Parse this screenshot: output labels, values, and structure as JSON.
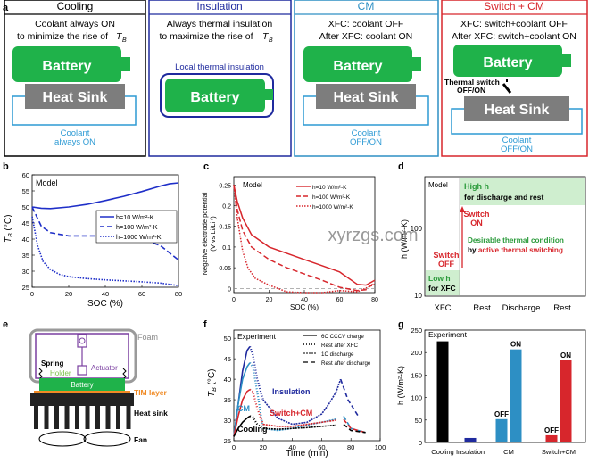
{
  "panel_a": {
    "label": "a",
    "cooling": {
      "title": "Cooling",
      "line1": "Coolant always ON",
      "line2": "to minimize the rise of ",
      "tb": "T",
      "tb_sub": "B",
      "battery": "Battery",
      "heatsink": "Heat Sink",
      "coolant1": "Coolant",
      "coolant2": "always ON"
    },
    "insulation": {
      "title": "Insulation",
      "line1": "Always thermal insulation",
      "line2": "to maximize the rise of ",
      "tb": "T",
      "tb_sub": "B",
      "local": "Local thermal insulation",
      "battery": "Battery"
    },
    "cm": {
      "title": "CM",
      "line1": "XFC: coolant OFF",
      "line2": "After XFC: coolant ON",
      "battery": "Battery",
      "heatsink": "Heat Sink",
      "coolant1": "Coolant",
      "coolant2": "OFF/ON"
    },
    "switch": {
      "title": "Switch + CM",
      "line1": "XFC: switch+coolant OFF",
      "line2": "After XFC: switch+coolant ON",
      "battery": "Battery",
      "ts1": "Thermal switch",
      "ts2": "OFF/ON",
      "heatsink": "Heat Sink",
      "coolant1": "Coolant",
      "coolant2": "OFF/ON"
    }
  },
  "panel_b": {
    "label": "b",
    "model": "Model",
    "ylabel_t": "T",
    "ylabel_sub": "B",
    "ylabel_unit": " (°C)",
    "xlabel": "SOC (%)",
    "legend": [
      "h=10 W/m²-K",
      "h=100 W/m²-K",
      "h=1000 W/m²-K"
    ],
    "xticks": [
      "0",
      "20",
      "40",
      "60",
      "80"
    ],
    "yticks": [
      "25",
      "30",
      "35",
      "40",
      "45",
      "50",
      "55",
      "60"
    ]
  },
  "panel_c": {
    "label": "c",
    "model": "Model",
    "ylabel1": "Negative electrode potential",
    "ylabel2": "(V vs Li/Li⁺)",
    "xlabel": "SOC (%)",
    "legend": [
      "h=10 W/m²-K",
      "h=100 W/m²-K",
      "h=1000 W/m²-K"
    ],
    "xticks": [
      "0",
      "20",
      "40",
      "60",
      "80"
    ],
    "yticks": [
      "0",
      "0.05",
      "0.1",
      "0.15",
      "0.2",
      "0.25"
    ]
  },
  "panel_d": {
    "label": "d",
    "model": "Model",
    "ylabel": "h (W/m²-K)",
    "yticks": [
      "10",
      "100"
    ],
    "xcats": [
      "XFC",
      "Rest",
      "Discharge",
      "Rest"
    ],
    "high_h": "High h",
    "high_desc": "for discharge and rest",
    "switch_on1": "Switch",
    "switch_on2": "ON",
    "switch_off1": "Switch",
    "switch_off2": "OFF",
    "desirable1": "Desirable thermal condition",
    "desirable2a": "by ",
    "desirable2b": "active thermal switching",
    "low_h": "Low h",
    "low_desc": "for XFC"
  },
  "panel_e": {
    "label": "e",
    "foam": "Foam",
    "spring": "Spring",
    "holder": "Holder",
    "actuator": "Actuator",
    "battery": "Battery",
    "tim": "TIM layer",
    "heatsink": "Heat sink",
    "fan": "Fan"
  },
  "panel_f": {
    "label": "f",
    "experiment": "Experiment",
    "ylabel_t": "T",
    "ylabel_sub": "B",
    "ylabel_unit": " (°C)",
    "xlabel": "Time (min)",
    "legend": [
      "6C CCCV charge",
      "Rest after XFC",
      "1C discharge",
      "Rest after discharge"
    ],
    "series_labels": [
      "Insulation",
      "CM",
      "Switch+CM",
      "Cooling"
    ],
    "xticks": [
      "0",
      "20",
      "40",
      "60",
      "80",
      "100"
    ],
    "yticks": [
      "25",
      "30",
      "35",
      "40",
      "45",
      "50"
    ]
  },
  "panel_g": {
    "label": "g",
    "experiment": "Experiment",
    "ylabel": "h (W/m²-K)",
    "yticks": [
      "0",
      "50",
      "100",
      "150",
      "200",
      "250"
    ],
    "categories": [
      "Cooling",
      "Insulation",
      "CM",
      "Switch+CM"
    ],
    "bar_labels": [
      "OFF",
      "ON",
      "OFF",
      "ON"
    ]
  },
  "watermark": "xyrzgs.com",
  "colors": {
    "cooling": "#000000",
    "insulation": "#1f2a9e",
    "cm": "#2d8fc4",
    "switch": "#d7262c",
    "battery": "#1fb24a",
    "heatsink": "#7d7d7d",
    "coolant": "#2d9ad4"
  },
  "chart_data": [
    {
      "panel": "b",
      "type": "line",
      "xlim": [
        0,
        80
      ],
      "ylim": [
        25,
        60
      ],
      "series": [
        {
          "name": "h=10 W/m²-K",
          "x": [
            0,
            5,
            10,
            20,
            30,
            40,
            50,
            60,
            70,
            75,
            80
          ],
          "y": [
            50,
            49.6,
            49.5,
            50,
            50.8,
            52,
            53.3,
            54.8,
            56.5,
            57.2,
            57.5
          ]
        },
        {
          "name": "h=100 W/m²-K",
          "x": [
            0,
            5,
            10,
            20,
            30,
            40,
            50,
            60,
            70,
            80
          ],
          "y": [
            50,
            44,
            42,
            41,
            41,
            41,
            40.8,
            40,
            38,
            33.5
          ]
        },
        {
          "name": "h=1000 W/m²-K",
          "x": [
            0,
            3,
            6,
            10,
            15,
            20,
            30,
            40,
            50,
            60,
            70,
            80
          ],
          "y": [
            47,
            38,
            33,
            30.5,
            29,
            28.3,
            27.7,
            27.3,
            27,
            26.7,
            26.3,
            25.5
          ]
        }
      ]
    },
    {
      "panel": "c",
      "type": "line",
      "xlim": [
        0,
        80
      ],
      "ylim": [
        -0.01,
        0.27
      ],
      "series": [
        {
          "name": "h=10 W/m²-K",
          "x": [
            0,
            2,
            5,
            10,
            20,
            30,
            40,
            50,
            60,
            70,
            75,
            80
          ],
          "y": [
            0.25,
            0.21,
            0.17,
            0.13,
            0.1,
            0.085,
            0.07,
            0.055,
            0.04,
            0.01,
            0.008,
            0.02
          ]
        },
        {
          "name": "h=100 W/m²-K",
          "x": [
            0,
            2,
            5,
            10,
            20,
            30,
            40,
            50,
            60,
            70,
            75,
            80
          ],
          "y": [
            0.25,
            0.19,
            0.14,
            0.1,
            0.07,
            0.05,
            0.035,
            0.02,
            0.003,
            -0.005,
            -0.003,
            0.015
          ]
        },
        {
          "name": "h=1000 W/m²-K",
          "x": [
            0,
            2,
            5,
            8,
            12,
            20,
            30,
            40,
            50,
            60,
            70,
            80
          ],
          "y": [
            0.25,
            0.17,
            0.09,
            0.05,
            0.025,
            0.008,
            -0.008,
            -0.01,
            -0.01,
            -0.005,
            -0.008,
            0.01
          ]
        }
      ]
    },
    {
      "panel": "f",
      "type": "line",
      "xlim": [
        0,
        100
      ],
      "ylim": [
        25,
        52
      ],
      "series": [
        {
          "name": "Insulation",
          "x": [
            0,
            3,
            6,
            9,
            11,
            13,
            16,
            20,
            30,
            40,
            50,
            60,
            65,
            70,
            73,
            78,
            85
          ],
          "y": [
            26,
            34,
            42,
            47,
            48,
            46,
            40,
            35,
            30.5,
            29,
            29.5,
            31.5,
            34,
            37,
            40,
            35,
            31
          ]
        },
        {
          "name": "CM",
          "x": [
            0,
            3,
            6,
            9,
            11,
            13,
            16,
            20,
            30,
            40,
            50,
            60,
            70,
            75,
            80,
            90
          ],
          "y": [
            26,
            34,
            40,
            43,
            44,
            43,
            37,
            28,
            27.5,
            28,
            28.8,
            29.5,
            30.3,
            31,
            28,
            27
          ]
        },
        {
          "name": "Switch+CM",
          "x": [
            0,
            3,
            6,
            9,
            11,
            13,
            16,
            20,
            30,
            40,
            50,
            60,
            70,
            75,
            80,
            90
          ],
          "y": [
            26,
            31,
            35,
            37,
            37.5,
            37,
            33,
            29,
            28.5,
            28.5,
            29,
            29.5,
            30,
            30.2,
            28,
            27
          ]
        },
        {
          "name": "Cooling",
          "x": [
            0,
            3,
            6,
            9,
            11,
            13,
            16,
            20,
            30,
            40,
            50,
            60,
            70,
            75,
            80,
            90
          ],
          "y": [
            26,
            28,
            29.5,
            30.5,
            31,
            30.8,
            29,
            28,
            27.8,
            28,
            28.2,
            28.5,
            28.8,
            29,
            27.5,
            27
          ]
        }
      ]
    },
    {
      "panel": "g",
      "type": "bar",
      "ylim": [
        0,
        250
      ],
      "categories": [
        "Cooling",
        "Insulation",
        "CM",
        "Switch+CM"
      ],
      "series": [
        {
          "name": "OFF",
          "values": [
            225,
            10,
            52,
            16
          ]
        },
        {
          "name": "ON",
          "values": [
            null,
            null,
            207,
            183
          ]
        }
      ]
    }
  ]
}
